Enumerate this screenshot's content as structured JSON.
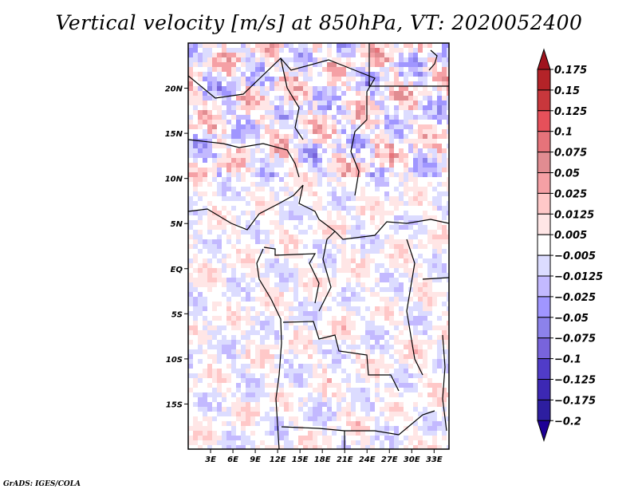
{
  "title": "Vertical velocity [m/s] at 850hPa, VT: 2020052400",
  "footer": "GrADS: IGES/COLA",
  "chart_data": {
    "type": "heatmap",
    "title": "Vertical velocity [m/s] at 850hPa, VT: 2020052400",
    "variable": "Vertical velocity",
    "units": "m/s",
    "level": "850hPa",
    "valid_time": "2020052400",
    "xlabel": "",
    "ylabel": "",
    "lon_range": [
      0,
      35
    ],
    "lat_range": [
      -20,
      25
    ],
    "x_ticks": [
      "3E",
      "6E",
      "9E",
      "12E",
      "15E",
      "18E",
      "21E",
      "24E",
      "27E",
      "30E",
      "33E"
    ],
    "x_tick_values": [
      3,
      6,
      9,
      12,
      15,
      18,
      21,
      24,
      27,
      30,
      33
    ],
    "y_ticks": [
      "20N",
      "15N",
      "10N",
      "5N",
      "EQ",
      "5S",
      "10S",
      "15S"
    ],
    "y_tick_values": [
      20,
      15,
      10,
      5,
      0,
      -5,
      -10,
      -15
    ],
    "colorbar": {
      "orientation": "vertical",
      "placement": "right",
      "extend": "both",
      "levels": [
        "0.175",
        "0.15",
        "0.125",
        "0.1",
        "0.075",
        "0.05",
        "0.025",
        "0.0125",
        "0.005",
        "-0.005",
        "-0.0125",
        "-0.025",
        "-0.05",
        "-0.075",
        "-0.1",
        "-0.125",
        "-0.175",
        "-0.2"
      ],
      "colors": [
        "#a0141e",
        "#b42328",
        "#c8373c",
        "#e6505a",
        "#e6737a",
        "#e18c91",
        "#f5a0a5",
        "#ffc8c8",
        "#ffe6e6",
        "#ffffff",
        "#dcdcff",
        "#c3b9ff",
        "#a096ff",
        "#8c82eb",
        "#7864dc",
        "#503cc8",
        "#3c28b4",
        "#2d1ea0",
        "#1e0096"
      ]
    }
  }
}
